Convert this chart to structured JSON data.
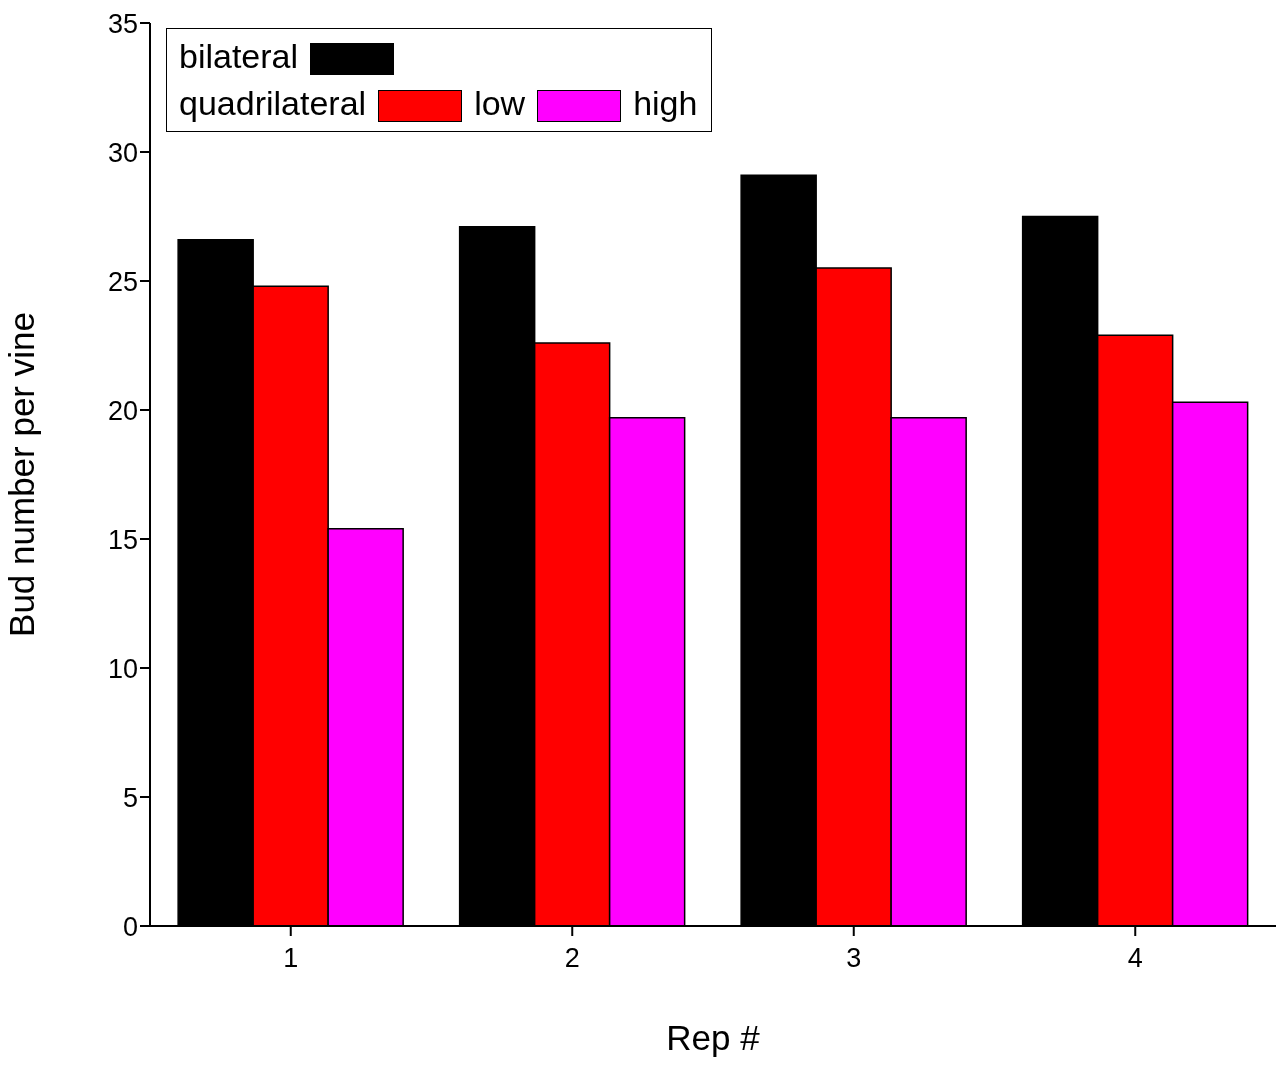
{
  "chart_data": {
    "type": "bar",
    "xlabel": "Rep #",
    "ylabel": "Bud number per vine",
    "legend_title": "quadrilateral",
    "categories": [
      "1",
      "2",
      "3",
      "4"
    ],
    "series": [
      {
        "name": "bilateral",
        "color": "#000000",
        "values": [
          26.6,
          27.1,
          29.1,
          27.5
        ]
      },
      {
        "name": "low",
        "color": "#ff0000",
        "values": [
          24.8,
          22.6,
          25.5,
          22.9
        ]
      },
      {
        "name": "high",
        "color": "#ff00ff",
        "values": [
          15.4,
          19.7,
          19.7,
          20.3
        ]
      }
    ],
    "ylim": [
      0,
      35
    ],
    "yticks": [
      0,
      5,
      10,
      15,
      20,
      25,
      30,
      35
    ],
    "grid": false,
    "legend": "top left"
  }
}
